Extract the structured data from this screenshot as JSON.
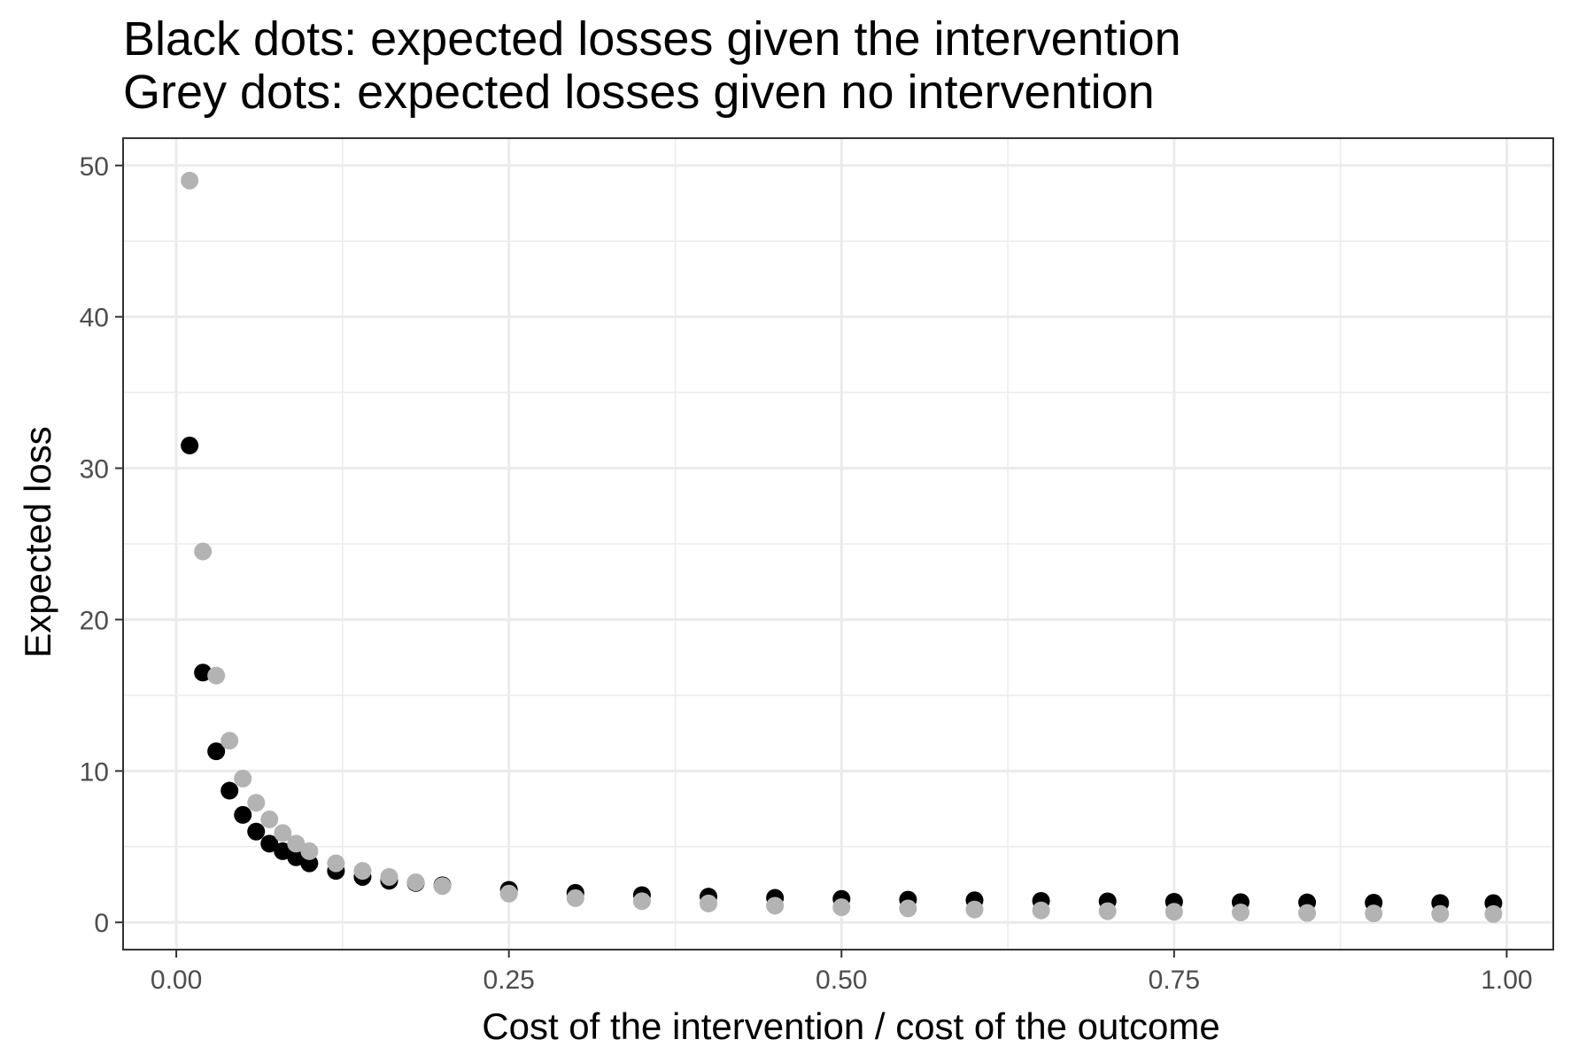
{
  "chart_data": {
    "type": "scatter",
    "title_lines": [
      "Black dots: expected losses given the intervention",
      "Grey dots: expected losses given no intervention"
    ],
    "xlabel": "Cost of the intervention / cost of the outcome",
    "ylabel": "Expected loss",
    "xlim": [
      -0.04,
      1.035
    ],
    "ylim": [
      -1.8,
      51.8
    ],
    "x_ticks": [
      0,
      0.25,
      0.5,
      0.75,
      1
    ],
    "x_tick_labels": [
      "0.00",
      "0.25",
      "0.50",
      "0.75",
      "1.00"
    ],
    "y_ticks": [
      0,
      10,
      20,
      30,
      40,
      50
    ],
    "y_tick_labels": [
      "0",
      "10",
      "20",
      "30",
      "40",
      "50"
    ],
    "grid": true,
    "colors": {
      "intervention": "#000000",
      "no_intervention": "#b3b3b3",
      "grid": "#ebebeb",
      "panel_border": "#333333",
      "tick_text": "#4d4d4d"
    },
    "series": [
      {
        "x": [
          0.01,
          0.02,
          0.03,
          0.04,
          0.05,
          0.06,
          0.07,
          0.08,
          0.09,
          0.1,
          0.12,
          0.14,
          0.16,
          0.18,
          0.2,
          0.25,
          0.3,
          0.35,
          0.4,
          0.45,
          0.5,
          0.55,
          0.6,
          0.65,
          0.7,
          0.75,
          0.8,
          0.85,
          0.9,
          0.95,
          0.99
        ],
        "values": [
          31.5,
          16.5,
          11.3,
          8.7,
          7.1,
          6.0,
          5.2,
          4.7,
          4.3,
          3.9,
          3.4,
          3.0,
          2.75,
          2.6,
          2.45,
          2.15,
          1.95,
          1.8,
          1.7,
          1.62,
          1.55,
          1.5,
          1.46,
          1.42,
          1.39,
          1.36,
          1.34,
          1.32,
          1.3,
          1.28,
          1.27
        ]
      },
      {
        "x": [
          0.01,
          0.02,
          0.03,
          0.04,
          0.05,
          0.06,
          0.07,
          0.08,
          0.09,
          0.1,
          0.12,
          0.14,
          0.16,
          0.18,
          0.2,
          0.25,
          0.3,
          0.35,
          0.4,
          0.45,
          0.5,
          0.55,
          0.6,
          0.65,
          0.7,
          0.75,
          0.8,
          0.85,
          0.9,
          0.95,
          0.99
        ],
        "values": [
          49.0,
          24.5,
          16.3,
          12.0,
          9.5,
          7.9,
          6.8,
          5.9,
          5.2,
          4.7,
          3.9,
          3.4,
          3.0,
          2.65,
          2.4,
          1.9,
          1.6,
          1.4,
          1.25,
          1.1,
          1.0,
          0.92,
          0.85,
          0.79,
          0.74,
          0.7,
          0.66,
          0.62,
          0.59,
          0.56,
          0.55
        ]
      }
    ]
  }
}
